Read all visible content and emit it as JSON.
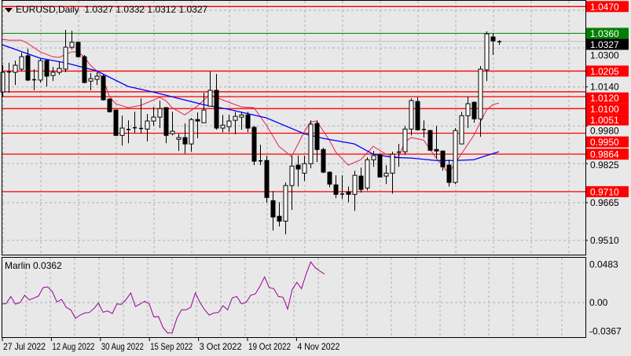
{
  "header": {
    "symbol_timeframe": "EURUSD,Daily",
    "ohlc": "1.0327 1.0332 1.0312 1.0327"
  },
  "indicator": {
    "name_value": "Marlin 0.0362"
  },
  "colors": {
    "background": "#e8e8e8",
    "level_line": "#ff0000",
    "target_line": "#008000",
    "bid_line": "#c0c0c0",
    "ma_fast": "#e8204a",
    "ma_slow": "#0000ff",
    "oscillator": "#990099",
    "bull_body": "#ffffff",
    "bear_body": "#000000"
  },
  "chart_data": [
    {
      "type": "candlestick",
      "title": "EURUSD,Daily",
      "y_ticks": [
        0.951,
        0.9665,
        0.9825,
        0.998,
        1.014,
        1.03,
        1.0455
      ],
      "y_tick_labels": [
        "0.9510",
        "0.9665",
        "0.9825",
        "0.9980",
        "1.0140",
        "1.0300",
        ""
      ],
      "grid": true,
      "ohlc": [
        [
          1.0119,
          1.0229,
          1.01,
          1.02
        ],
        [
          1.02,
          1.0239,
          1.0116,
          1.0203
        ],
        [
          1.02,
          1.0248,
          1.0148,
          1.0229
        ],
        [
          1.0213,
          1.0281,
          1.0206,
          1.0264
        ],
        [
          1.0268,
          1.0297,
          1.0164,
          1.0168
        ],
        [
          1.0171,
          1.0213,
          1.0126,
          1.0171
        ],
        [
          1.0168,
          1.0255,
          1.0158,
          1.0248
        ],
        [
          1.0248,
          1.0252,
          1.0142,
          1.0184
        ],
        [
          1.0187,
          1.0222,
          1.0164,
          1.02
        ],
        [
          1.02,
          1.0245,
          1.019,
          1.0216
        ],
        [
          1.0213,
          1.0374,
          1.02,
          1.0303
        ],
        [
          1.0303,
          1.0371,
          1.0294,
          1.0323
        ],
        [
          1.0323,
          1.0326,
          1.0261,
          1.0264
        ],
        [
          1.0264,
          1.0271,
          1.0155,
          1.0158
        ],
        [
          1.0164,
          1.0197,
          1.0126,
          1.0174
        ],
        [
          1.0171,
          1.02,
          1.0148,
          1.0184
        ],
        [
          1.0184,
          1.019,
          1.0084,
          1.0087
        ],
        [
          1.009,
          1.0093,
          1.0035,
          1.0038
        ],
        [
          1.0045,
          1.0045,
          0.9938,
          0.9941
        ],
        [
          0.9941,
          1.0022,
          0.9899,
          0.9971
        ],
        [
          0.9967,
          1.0003,
          0.9909,
          0.9967
        ],
        [
          0.9971,
          1.0038,
          0.9951,
          0.9974
        ],
        [
          0.9971,
          1.0093,
          0.9948,
          0.9967
        ],
        [
          0.9967,
          1.0029,
          0.9916,
          1.0
        ],
        [
          1.0,
          1.0058,
          0.998,
          1.0016
        ],
        [
          1.0016,
          1.0084,
          0.9971,
          1.0051
        ],
        [
          1.0055,
          1.0055,
          0.9909,
          0.9941
        ],
        [
          0.9948,
          1.0038,
          0.9941,
          0.9958
        ],
        [
          0.9925,
          0.9948,
          0.9877,
          0.9932
        ],
        [
          0.9932,
          0.999,
          0.9867,
          0.9906
        ],
        [
          0.9906,
          1.0013,
          0.9874,
          1.0006
        ],
        [
          1.0006,
          1.0035,
          0.9929,
          1.0
        ],
        [
          0.9993,
          1.0116,
          0.9993,
          1.0045
        ],
        [
          1.0061,
          1.0203,
          1.0061,
          1.0126
        ],
        [
          1.0126,
          1.0193,
          0.9964,
          0.9971
        ],
        [
          0.9971,
          1.0025,
          0.9954,
          0.9983
        ],
        [
          0.9977,
          1.0025,
          0.9954,
          1.0
        ],
        [
          1.0003,
          1.0038,
          0.9945,
          1.0019
        ],
        [
          1.0016,
          1.0038,
          0.9964,
          1.0025
        ],
        [
          1.0025,
          1.0038,
          0.9954,
          0.9971
        ],
        [
          0.9974,
          0.998,
          0.9819,
          0.9835
        ],
        [
          0.9838,
          0.9903,
          0.9819,
          0.9838
        ],
        [
          0.9838,
          0.9858,
          0.9664,
          0.9686
        ],
        [
          0.9673,
          0.9712,
          0.9551,
          0.9606
        ],
        [
          0.9609,
          0.9667,
          0.9567,
          0.9589
        ],
        [
          0.9589,
          0.9748,
          0.9535,
          0.9735
        ],
        [
          0.9735,
          0.9858,
          0.9635,
          0.9815
        ],
        [
          0.9819,
          0.9858,
          0.9731,
          0.9803
        ],
        [
          0.9786,
          0.9858,
          0.9754,
          0.9825
        ],
        [
          0.9825,
          1.0003,
          0.9806,
          0.9987
        ],
        [
          0.999,
          1.0003,
          0.9832,
          0.9883
        ],
        [
          0.9883,
          0.989,
          0.9786,
          0.979
        ],
        [
          0.979,
          0.9793,
          0.9728,
          0.9741
        ],
        [
          0.9738,
          0.9777,
          0.9683,
          0.9699
        ],
        [
          0.9702,
          0.9777,
          0.968,
          0.9702
        ],
        [
          0.9709,
          0.9731,
          0.9667,
          0.9699
        ],
        [
          0.9699,
          0.9796,
          0.9631,
          0.9777
        ],
        [
          0.9774,
          0.9809,
          0.9706,
          0.9719
        ],
        [
          0.9725,
          0.9851,
          0.9715,
          0.9841
        ],
        [
          0.9841,
          0.9877,
          0.9812,
          0.9858
        ],
        [
          0.9861,
          0.9867,
          0.977,
          0.977
        ],
        [
          0.9774,
          0.9819,
          0.9741,
          0.9786
        ],
        [
          0.9786,
          0.9874,
          0.9702,
          0.9864
        ],
        [
          0.9874,
          0.9906,
          0.9812,
          0.9874
        ],
        [
          0.9874,
          0.998,
          0.9861,
          0.9967
        ],
        [
          0.9967,
          1.0093,
          0.9941,
          1.0084
        ],
        [
          1.008,
          1.0097,
          0.9961,
          0.9964
        ],
        [
          0.9967,
          1.0003,
          0.9932,
          0.9967
        ],
        [
          0.9961,
          0.9964,
          0.9877,
          0.988
        ],
        [
          0.9883,
          0.998,
          0.9845,
          0.9877
        ],
        [
          0.9877,
          0.9877,
          0.9796,
          0.9812
        ],
        [
          0.9819,
          0.9841,
          0.9731,
          0.9748
        ],
        [
          0.9748,
          0.9971,
          0.9741,
          0.9961
        ],
        [
          0.9906,
          1.0038,
          0.9906,
          1.0022
        ],
        [
          1.0022,
          1.01,
          0.9971,
          1.0071
        ],
        [
          1.0077,
          1.008,
          0.9993,
          1.0009
        ],
        [
          1.0009,
          1.0226,
          0.9935,
          1.0213
        ],
        [
          1.021,
          1.0368,
          1.0164,
          1.0358
        ],
        [
          1.0345,
          1.0361,
          1.0271,
          1.0329
        ],
        [
          1.0327,
          1.0332,
          1.0312,
          1.0327
        ]
      ],
      "moving_averages": [
        {
          "color": "#e8204a",
          "points": [
            [
              0,
              1.0336
            ],
            [
              1,
              1.0332
            ],
            [
              3,
              1.0332
            ],
            [
              4,
              1.0319
            ],
            [
              6,
              1.0284
            ],
            [
              8,
              1.0264
            ],
            [
              9,
              1.0261
            ],
            [
              11,
              1.0284
            ],
            [
              12,
              1.0284
            ],
            [
              13,
              1.0264
            ],
            [
              14,
              1.0229
            ],
            [
              15,
              1.0206
            ],
            [
              16,
              1.0174
            ],
            [
              17,
              1.0103
            ],
            [
              18,
              1.0071
            ],
            [
              20,
              1.0055
            ],
            [
              22,
              1.0064
            ],
            [
              25,
              1.0097
            ],
            [
              26,
              1.0084
            ],
            [
              27,
              1.0055
            ],
            [
              29,
              1.0025
            ],
            [
              31,
              1.0061
            ],
            [
              33,
              1.0109
            ],
            [
              35,
              1.0087
            ],
            [
              38,
              1.0058
            ],
            [
              40,
              1.0055
            ],
            [
              42,
              0.9983
            ],
            [
              44,
              0.9896
            ],
            [
              46,
              0.9854
            ],
            [
              48,
              0.9954
            ],
            [
              49,
              0.9996
            ],
            [
              50,
              1.0
            ],
            [
              52,
              0.9922
            ],
            [
              53,
              0.9874
            ],
            [
              55,
              0.9819
            ],
            [
              57,
              0.9841
            ],
            [
              59,
              0.9896
            ],
            [
              61,
              0.9864
            ],
            [
              63,
              0.9851
            ],
            [
              64,
              0.9912
            ],
            [
              65,
              0.9932
            ],
            [
              67,
              0.9922
            ],
            [
              69,
              0.9848
            ],
            [
              71,
              0.9786
            ],
            [
              73,
              0.9864
            ],
            [
              75,
              0.9941
            ],
            [
              77,
              1.0045
            ],
            [
              78,
              1.0067
            ],
            [
              79,
              1.0074
            ]
          ]
        },
        {
          "color": "#0000ff",
          "points": [
            [
              0,
              1.0313
            ],
            [
              6,
              1.0258
            ],
            [
              10,
              1.0239
            ],
            [
              15,
              1.0206
            ],
            [
              20,
              1.0142
            ],
            [
              24,
              1.0119
            ],
            [
              32,
              1.0067
            ],
            [
              36,
              1.0048
            ],
            [
              42,
              1.0013
            ],
            [
              48,
              0.9948
            ],
            [
              51,
              0.9929
            ],
            [
              56,
              0.9906
            ],
            [
              59,
              0.9864
            ],
            [
              62,
              0.9851
            ],
            [
              65,
              0.9848
            ],
            [
              69,
              0.9838
            ],
            [
              72,
              0.9838
            ],
            [
              75,
              0.9841
            ],
            [
              77,
              0.9858
            ],
            [
              79,
              0.9874
            ]
          ]
        }
      ],
      "levels": [
        {
          "price": 1.047,
          "label": "1.0470",
          "kind": "resistance",
          "color": "#ff0000"
        },
        {
          "price": 1.036,
          "label": "1.0360",
          "kind": "target",
          "color": "#008000"
        },
        {
          "price": 1.0205,
          "label": "1.0205",
          "kind": "resistance",
          "color": "#ff0000"
        },
        {
          "price": 1.012,
          "label": "1.0120",
          "kind": "resistance",
          "color": "#ff0000"
        },
        {
          "price": 1.01,
          "label": "1.0100",
          "kind": "resistance",
          "color": "#ff0000"
        },
        {
          "price": 1.0051,
          "label": "1.0051",
          "kind": "support",
          "color": "#ff0000"
        },
        {
          "price": 0.995,
          "label": "0.9950",
          "kind": "support",
          "color": "#ff0000"
        },
        {
          "price": 0.9864,
          "label": "0.9864",
          "kind": "support",
          "color": "#ff0000"
        },
        {
          "price": 0.971,
          "label": "0.9710",
          "kind": "support",
          "color": "#ff0000"
        }
      ],
      "bid": {
        "price": 1.0327,
        "label": "1.0327"
      }
    },
    {
      "type": "line",
      "title": "Marlin 0.0362",
      "y_ticks": [
        -0.0367,
        0.0,
        0.0483
      ],
      "y_tick_labels": [
        "-0.0367",
        "0.00",
        "0.0483"
      ],
      "values": [
        -0.002,
        -0.0013,
        0.0077,
        -0.002,
        0.0,
        0.0093,
        0.0033,
        0.0057,
        0.0083,
        0.019,
        0.02,
        0.014,
        0.0007,
        0.004,
        -0.006,
        -0.0093,
        -0.02,
        -0.016,
        -0.0133,
        -0.0127,
        -0.0077,
        -0.0007,
        -0.0123,
        -0.0107,
        -0.014,
        -0.0017,
        -0.0023,
        0.004,
        0.0123,
        -0.005,
        -0.002,
        0.0017,
        -0.0017,
        -0.0183,
        -0.0177,
        -0.0317,
        -0.039,
        -0.0383,
        -0.02,
        -0.0093,
        -0.0093,
        -0.006,
        0.0123,
        0.0,
        -0.009,
        -0.016,
        -0.0133,
        -0.0127,
        -0.004,
        -0.0093,
        0.006,
        0.0077,
        -0.0017,
        0.0,
        0.0093,
        0.011,
        0.0207,
        0.0327,
        0.019,
        0.0177,
        0.0077,
        0.0067,
        -0.0083,
        0.0167,
        0.0257,
        0.0177,
        0.036,
        0.0517,
        0.0443,
        0.04,
        0.0362
      ],
      "x_tick_labels": [
        "27 Jul 2022",
        "12 Aug 2022",
        "30 Aug 2022",
        "15 Sep 2022",
        "3 Oct 2022",
        "19 Oct 2022",
        "4 Nov 2022"
      ]
    }
  ]
}
